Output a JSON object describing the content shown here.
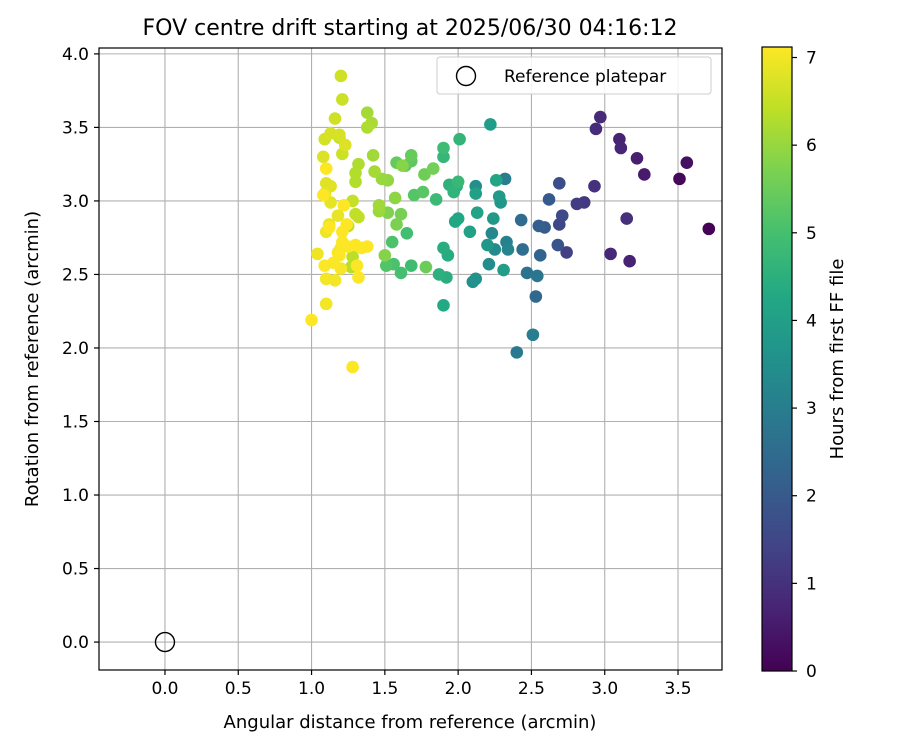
{
  "chart_data": {
    "type": "scatter",
    "title": "FOV centre drift starting at 2025/06/30 04:16:12",
    "xlabel": "Angular distance from reference (arcmin)",
    "ylabel": "Rotation from reference (arcmin)",
    "xlim": [
      -0.45,
      3.8
    ],
    "ylim": [
      -0.19,
      4.04
    ],
    "xticks": [
      0.0,
      0.5,
      1.0,
      1.5,
      2.0,
      2.5,
      3.0,
      3.5
    ],
    "yticks": [
      0.0,
      0.5,
      1.0,
      1.5,
      2.0,
      2.5,
      3.0,
      3.5,
      4.0
    ],
    "grid": true,
    "legend": {
      "position": "top-right",
      "entries": [
        "Reference platepar"
      ]
    },
    "reference_point": {
      "x": 0.0,
      "y": 0.0,
      "label": "Reference platepar"
    },
    "colorbar": {
      "label": "Hours from first FF file",
      "min": 0,
      "max": 7.12,
      "ticks": [
        0,
        1,
        2,
        3,
        4,
        5,
        6,
        7
      ],
      "colormap": "viridis"
    },
    "points": [
      [
        3.71,
        2.81,
        0.05
      ],
      [
        3.51,
        3.15,
        0.15
      ],
      [
        3.56,
        3.26,
        0.3
      ],
      [
        3.27,
        3.18,
        0.5
      ],
      [
        3.22,
        3.29,
        0.6
      ],
      [
        3.1,
        3.42,
        0.7
      ],
      [
        3.11,
        3.36,
        0.75
      ],
      [
        2.97,
        3.57,
        0.85
      ],
      [
        2.94,
        3.49,
        0.9
      ],
      [
        3.17,
        2.59,
        0.7
      ],
      [
        3.04,
        2.64,
        0.8
      ],
      [
        3.15,
        2.88,
        0.95
      ],
      [
        2.93,
        3.1,
        1.0
      ],
      [
        2.86,
        2.99,
        1.15
      ],
      [
        2.81,
        2.98,
        1.25
      ],
      [
        2.74,
        2.65,
        1.35
      ],
      [
        2.69,
        2.84,
        1.5
      ],
      [
        2.71,
        2.9,
        1.6
      ],
      [
        2.69,
        3.12,
        1.7
      ],
      [
        2.68,
        2.7,
        1.85
      ],
      [
        2.62,
        3.01,
        2.0
      ],
      [
        2.59,
        2.82,
        2.05
      ],
      [
        2.55,
        2.83,
        2.15
      ],
      [
        2.56,
        2.63,
        2.3
      ],
      [
        2.53,
        2.35,
        2.4
      ],
      [
        2.43,
        2.87,
        2.5
      ],
      [
        2.44,
        2.67,
        2.55
      ],
      [
        2.47,
        2.51,
        2.7
      ],
      [
        2.54,
        2.49,
        2.8
      ],
      [
        2.4,
        1.97,
        2.9
      ],
      [
        2.51,
        2.09,
        3.0
      ],
      [
        2.32,
        3.15,
        3.0
      ],
      [
        2.33,
        2.72,
        3.1
      ],
      [
        2.34,
        2.67,
        3.2
      ],
      [
        2.23,
        2.78,
        3.3
      ],
      [
        2.25,
        2.67,
        3.4
      ],
      [
        2.21,
        2.57,
        3.45
      ],
      [
        2.12,
        3.1,
        3.5
      ],
      [
        2.1,
        2.45,
        3.55
      ],
      [
        2.12,
        2.47,
        3.6
      ],
      [
        2.29,
        2.99,
        3.7
      ],
      [
        2.2,
        2.7,
        3.75
      ],
      [
        2.24,
        2.88,
        3.8
      ],
      [
        2.28,
        3.03,
        3.85
      ],
      [
        2.22,
        3.52,
        3.9
      ],
      [
        2.31,
        2.53,
        3.95
      ],
      [
        2.12,
        3.05,
        4.0
      ],
      [
        2.08,
        2.79,
        4.05
      ],
      [
        2.13,
        2.92,
        4.1
      ],
      [
        2.26,
        3.14,
        4.15
      ],
      [
        2.0,
        2.88,
        4.2
      ],
      [
        1.98,
        2.86,
        4.25
      ],
      [
        1.9,
        2.29,
        4.3
      ],
      [
        1.93,
        2.63,
        4.35
      ],
      [
        1.9,
        2.68,
        4.4
      ],
      [
        1.92,
        2.48,
        4.45
      ],
      [
        1.87,
        2.5,
        4.5
      ],
      [
        1.99,
        3.1,
        4.5
      ],
      [
        1.94,
        3.11,
        4.55
      ],
      [
        1.97,
        3.06,
        4.6
      ],
      [
        2.01,
        3.42,
        4.65
      ],
      [
        1.9,
        3.3,
        4.7
      ],
      [
        2.0,
        3.13,
        4.75
      ],
      [
        1.85,
        3.01,
        4.8
      ],
      [
        1.9,
        3.36,
        4.85
      ],
      [
        1.68,
        2.56,
        4.9
      ],
      [
        1.65,
        2.78,
        4.95
      ],
      [
        1.61,
        2.51,
        5.0
      ],
      [
        1.56,
        2.57,
        5.05
      ],
      [
        1.55,
        2.72,
        5.1
      ],
      [
        1.51,
        2.56,
        5.15
      ],
      [
        1.7,
        3.04,
        5.2
      ],
      [
        1.76,
        3.06,
        5.25
      ],
      [
        1.68,
        3.27,
        5.3
      ],
      [
        1.64,
        3.24,
        5.35
      ],
      [
        1.58,
        3.26,
        5.4
      ],
      [
        1.68,
        3.31,
        5.45
      ],
      [
        1.78,
        2.55,
        5.5
      ],
      [
        1.77,
        3.18,
        5.55
      ],
      [
        1.83,
        3.22,
        5.6
      ],
      [
        1.61,
        2.91,
        5.65
      ],
      [
        1.58,
        2.84,
        5.7
      ],
      [
        1.52,
        2.92,
        5.75
      ],
      [
        1.5,
        2.63,
        5.8
      ],
      [
        1.62,
        3.24,
        5.85
      ],
      [
        1.57,
        3.02,
        5.9
      ],
      [
        1.52,
        3.14,
        5.95
      ],
      [
        1.48,
        3.15,
        6.0
      ],
      [
        1.46,
        2.93,
        6.05
      ],
      [
        1.46,
        2.97,
        6.1
      ],
      [
        1.42,
        3.31,
        6.1
      ],
      [
        1.43,
        3.2,
        6.15
      ],
      [
        1.38,
        3.6,
        6.15
      ],
      [
        1.41,
        3.53,
        6.2
      ],
      [
        1.38,
        3.5,
        6.25
      ],
      [
        1.32,
        3.25,
        6.25
      ],
      [
        1.3,
        3.19,
        6.3
      ],
      [
        1.3,
        3.13,
        6.3
      ],
      [
        1.27,
        2.55,
        6.35
      ],
      [
        1.28,
        2.62,
        6.4
      ],
      [
        1.25,
        2.83,
        6.4
      ],
      [
        1.3,
        2.91,
        6.45
      ],
      [
        1.32,
        2.89,
        6.45
      ],
      [
        1.28,
        3.0,
        6.5
      ],
      [
        1.19,
        3.43,
        6.5
      ],
      [
        1.21,
        3.32,
        6.55
      ],
      [
        1.21,
        3.69,
        6.55
      ],
      [
        1.2,
        3.85,
        6.6
      ],
      [
        1.16,
        3.56,
        6.6
      ],
      [
        1.09,
        3.42,
        6.65
      ],
      [
        1.13,
        3.46,
        6.7
      ],
      [
        1.19,
        3.45,
        6.7
      ],
      [
        1.23,
        3.38,
        6.75
      ],
      [
        1.08,
        3.3,
        6.75
      ],
      [
        1.1,
        3.12,
        6.8
      ],
      [
        1.13,
        3.1,
        6.8
      ],
      [
        1.09,
        3.05,
        6.85
      ],
      [
        1.13,
        2.99,
        6.85
      ],
      [
        1.18,
        2.9,
        6.9
      ],
      [
        1.12,
        2.84,
        6.9
      ],
      [
        1.1,
        2.79,
        6.95
      ],
      [
        1.04,
        2.64,
        6.95
      ],
      [
        1.1,
        2.47,
        7.0
      ],
      [
        1.1,
        2.3,
        7.0
      ],
      [
        1.16,
        2.46,
        7.0
      ],
      [
        1.2,
        2.54,
        7.05
      ],
      [
        1.18,
        2.65,
        7.05
      ],
      [
        1.2,
        2.68,
        7.05
      ],
      [
        1.25,
        2.69,
        7.1
      ],
      [
        1.21,
        2.72,
        7.1
      ],
      [
        1.15,
        2.58,
        7.1
      ],
      [
        1.19,
        2.63,
        7.1
      ],
      [
        1.09,
        2.56,
        7.1
      ],
      [
        1.31,
        2.56,
        7.1
      ],
      [
        1.32,
        2.48,
        7.1
      ],
      [
        1.34,
        2.68,
        7.1
      ],
      [
        1.3,
        2.7,
        7.12
      ],
      [
        1.38,
        2.69,
        7.12
      ],
      [
        1.21,
        2.79,
        7.12
      ],
      [
        1.24,
        2.84,
        7.12
      ],
      [
        1.22,
        2.97,
        7.12
      ],
      [
        1.0,
        2.19,
        7.12
      ],
      [
        1.28,
        1.87,
        7.12
      ],
      [
        1.1,
        3.22,
        7.12
      ],
      [
        1.08,
        3.04,
        7.12
      ],
      [
        1.12,
        2.82,
        7.12
      ]
    ]
  }
}
